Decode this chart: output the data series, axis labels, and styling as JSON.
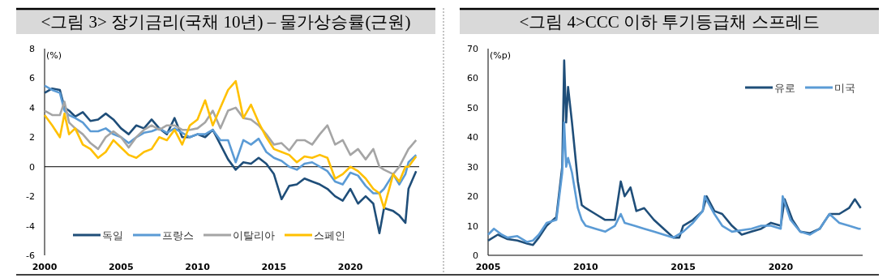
{
  "chart_data": [
    {
      "type": "line",
      "title": "<그림 3> 장기금리(국채 10년) – 물가상승률(근원)",
      "ylabel": "(%)",
      "xlim": [
        2000,
        2024.5
      ],
      "xticks": [
        2000,
        2005,
        2010,
        2015,
        2020
      ],
      "ylim": [
        -6,
        8
      ],
      "yticks": [
        -6,
        -4,
        -2,
        0,
        2,
        4,
        6,
        8
      ],
      "legend": "bottom left",
      "x": [
        2000,
        2000.5,
        2001,
        2001.3,
        2001.6,
        2002,
        2002.5,
        2003,
        2003.5,
        2004,
        2004.5,
        2005,
        2005.5,
        2006,
        2006.5,
        2007,
        2007.5,
        2008,
        2008.5,
        2009,
        2009.5,
        2010,
        2010.5,
        2011,
        2011.5,
        2012,
        2012.5,
        2013,
        2013.5,
        2014,
        2014.5,
        2015,
        2015.5,
        2016,
        2016.5,
        2017,
        2017.5,
        2018,
        2018.5,
        2019,
        2019.5,
        2020,
        2020.5,
        2021,
        2021.5,
        2021.9,
        2022.2,
        2022.8,
        2023.2,
        2023.6,
        2023.8,
        2024.3
      ],
      "series": [
        {
          "name": "독일",
          "color": "#1f4e79",
          "values": [
            5.0,
            5.3,
            5.2,
            4.0,
            3.8,
            3.4,
            3.7,
            3.1,
            3.2,
            3.6,
            3.2,
            2.6,
            2.2,
            2.8,
            2.6,
            3.2,
            2.6,
            2.2,
            3.3,
            2.0,
            2.0,
            2.2,
            2.0,
            2.5,
            1.5,
            0.5,
            -0.2,
            0.3,
            0.2,
            0.6,
            0.2,
            -0.5,
            -2.2,
            -1.3,
            -1.2,
            -0.8,
            -1.0,
            -1.2,
            -1.5,
            -2.0,
            -2.3,
            -1.5,
            -2.5,
            -2.0,
            -2.5,
            -4.5,
            -2.8,
            -3.0,
            -3.3,
            -3.8,
            -1.5,
            -0.3
          ]
        },
        {
          "name": "프랑스",
          "color": "#5b9bd5",
          "values": [
            5.5,
            5.2,
            5.0,
            3.8,
            3.5,
            3.3,
            3.0,
            2.4,
            2.4,
            2.6,
            2.2,
            2.0,
            1.6,
            2.0,
            2.3,
            2.4,
            2.6,
            2.3,
            2.6,
            2.3,
            2.0,
            2.2,
            2.2,
            2.5,
            1.8,
            1.8,
            0.3,
            1.8,
            1.5,
            1.9,
            1.0,
            0.6,
            0.4,
            0.0,
            -0.2,
            0.2,
            0.3,
            0.0,
            -0.3,
            -1.0,
            -1.2,
            -0.4,
            -0.6,
            -1.3,
            -1.8,
            -1.8,
            -1.5,
            -0.5,
            -1.2,
            -0.5,
            0.3,
            0.8
          ]
        },
        {
          "name": "이탈리아",
          "color": "#a5a5a5",
          "values": [
            3.8,
            3.5,
            3.5,
            4.4,
            3.0,
            2.6,
            2.2,
            1.6,
            1.2,
            2.0,
            2.4,
            2.0,
            1.3,
            2.0,
            2.5,
            2.8,
            2.5,
            2.8,
            2.8,
            2.5,
            2.5,
            2.6,
            3.0,
            3.8,
            2.6,
            3.8,
            4.0,
            3.3,
            3.2,
            2.8,
            2.2,
            1.5,
            1.6,
            1.1,
            1.8,
            1.8,
            1.5,
            2.2,
            2.8,
            1.5,
            1.8,
            0.8,
            1.2,
            0.5,
            1.2,
            0.0,
            -0.2,
            -0.5,
            0.0,
            0.8,
            1.2,
            1.8
          ]
        },
        {
          "name": "스페인",
          "color": "#ffc000",
          "values": [
            3.5,
            2.8,
            2.0,
            3.6,
            2.2,
            2.6,
            1.5,
            1.2,
            0.6,
            1.0,
            1.8,
            1.3,
            0.8,
            0.6,
            1.0,
            1.2,
            2.0,
            1.8,
            2.5,
            1.5,
            2.8,
            3.2,
            4.5,
            2.8,
            4.0,
            5.2,
            5.8,
            3.3,
            4.2,
            3.0,
            2.0,
            1.2,
            1.0,
            0.8,
            0.3,
            0.7,
            0.6,
            0.8,
            0.6,
            -0.8,
            -0.5,
            0.0,
            -0.3,
            -0.8,
            -1.5,
            -1.8,
            -2.8,
            -0.5,
            -1.0,
            0.0,
            0.0,
            0.7
          ]
        }
      ]
    },
    {
      "type": "line",
      "title": "<그림 4>CCC 이하 투기등급채 스프레드",
      "ylabel": "(%p)",
      "xlim": [
        2005,
        2024.2
      ],
      "xticks": [
        2005,
        2010,
        2015,
        2020
      ],
      "ylim": [
        0,
        70
      ],
      "yticks": [
        0,
        10,
        20,
        30,
        40,
        50,
        60,
        70
      ],
      "legend": "top right",
      "series": [
        {
          "name": "유로",
          "color": "#1f4e79",
          "x": [
            2005,
            2005.5,
            2006,
            2006.5,
            2007,
            2007.3,
            2007.6,
            2008,
            2008.5,
            2008.8,
            2008.9,
            2009.0,
            2009.1,
            2009.3,
            2009.6,
            2009.8,
            2010,
            2010.5,
            2011,
            2011.5,
            2011.8,
            2012,
            2012.3,
            2012.6,
            2013,
            2013.5,
            2014,
            2014.5,
            2014.8,
            2015,
            2015.5,
            2016,
            2016.2,
            2016.6,
            2017,
            2017.5,
            2018,
            2018.5,
            2019,
            2019.5,
            2020,
            2020.2,
            2020.6,
            2021,
            2021.5,
            2022,
            2022.5,
            2023,
            2023.5,
            2023.8,
            2024.1
          ],
          "values": [
            5,
            7,
            5.5,
            5,
            4,
            3.5,
            6,
            10,
            13,
            30,
            66,
            45,
            57,
            45,
            25,
            17,
            16,
            14,
            12,
            12,
            25,
            20,
            23,
            15,
            16,
            12,
            9,
            6,
            6,
            10,
            12,
            15,
            20,
            15,
            14,
            10,
            7,
            8,
            9,
            11,
            10,
            19,
            12,
            8,
            7.5,
            9,
            14,
            14,
            16,
            19,
            16
          ]
        },
        {
          "name": "미국",
          "color": "#5b9bd5",
          "x": [
            2005,
            2005.3,
            2005.7,
            2006,
            2006.5,
            2007,
            2007.3,
            2007.6,
            2008,
            2008.5,
            2008.8,
            2008.9,
            2009.0,
            2009.1,
            2009.3,
            2009.6,
            2009.8,
            2010,
            2010.5,
            2011,
            2011.5,
            2011.8,
            2012,
            2012.5,
            2013,
            2013.5,
            2014,
            2014.5,
            2015,
            2015.5,
            2016,
            2016.1,
            2016.6,
            2017,
            2017.5,
            2018,
            2018.5,
            2019,
            2019.5,
            2020,
            2020.1,
            2020.5,
            2021,
            2021.5,
            2022,
            2022.5,
            2023,
            2023.5,
            2024,
            2024.1
          ],
          "values": [
            7,
            9,
            7,
            6,
            6.5,
            4.5,
            5,
            7,
            11,
            12,
            28,
            45,
            30,
            33,
            28,
            16,
            12,
            10,
            9,
            8,
            10,
            14,
            11,
            10,
            9,
            8,
            7,
            6,
            8,
            11,
            15,
            20,
            14,
            10,
            8,
            8.5,
            9,
            10,
            10,
            9,
            20,
            12,
            8,
            7,
            9,
            14,
            11,
            10,
            9,
            9
          ]
        }
      ]
    }
  ]
}
